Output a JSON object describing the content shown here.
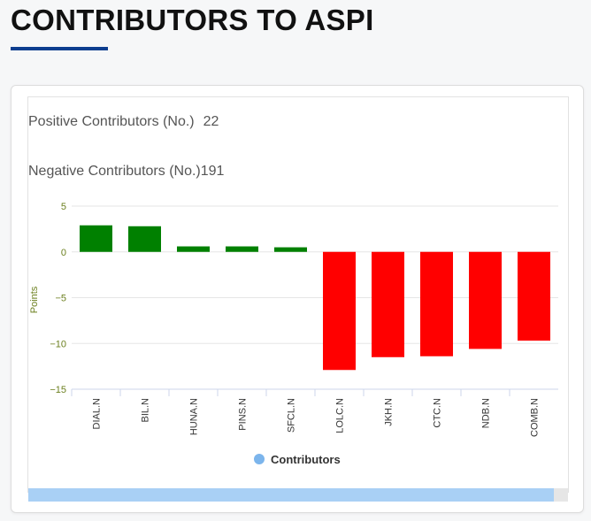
{
  "page": {
    "title": "CONTRIBUTORS TO ASPI"
  },
  "stats": {
    "positive_label": "Positive Contributors (No.)",
    "positive_value": "22",
    "negative_label": "Negative Contributors (No.)",
    "negative_value": "191"
  },
  "colors": {
    "title_underline": "#0d3e8f",
    "positive_bar": "#008000",
    "negative_bar": "#ff0000",
    "axis_text": "#6b7f1e",
    "legend_dot": "#7cb5ec"
  },
  "chart_data": {
    "type": "bar",
    "title": "",
    "xlabel": "",
    "ylabel": "Points",
    "ylim": [
      -15,
      5
    ],
    "yticks": [
      5,
      0,
      -5,
      -10,
      -15
    ],
    "grid": true,
    "legend": [
      "Contributors"
    ],
    "legend_position": "bottom-center",
    "categories": [
      "DIAL.N",
      "BIL.N",
      "HUNA.N",
      "PINS.N",
      "SFCL.N",
      "LOLC.N",
      "JKH.N",
      "CTC.N",
      "NDB.N",
      "COMB.N"
    ],
    "series": [
      {
        "name": "Contributors",
        "values": [
          2.9,
          2.8,
          0.6,
          0.6,
          0.5,
          -12.9,
          -11.5,
          -11.4,
          -10.6,
          -9.7
        ]
      }
    ]
  }
}
